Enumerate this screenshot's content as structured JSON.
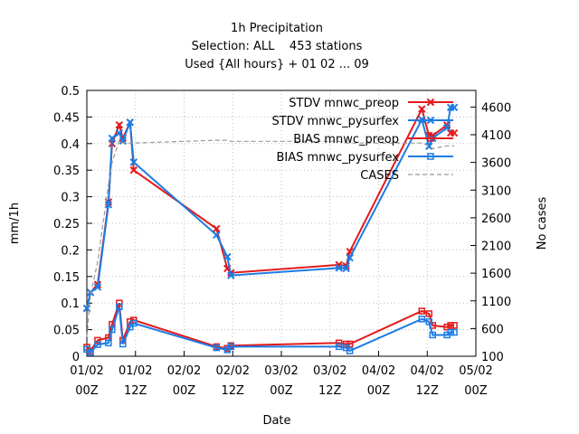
{
  "chart_data": {
    "type": "line",
    "title": [
      "1h Precipitation",
      "Selection: ALL    453 stations",
      "Used {All hours} + 01 02 ... 09"
    ],
    "xlabel": "Date",
    "ylabel": "mm/1h",
    "y2label": "No cases",
    "ylim": [
      0,
      0.5
    ],
    "y2lim": [
      100,
      4900
    ],
    "xlim": [
      0,
      108
    ],
    "x_unit": "hours since 01/02 00Z",
    "yticks": [
      "0",
      "0.05",
      "0.1",
      "0.15",
      "0.2",
      "0.25",
      "0.3",
      "0.35",
      "0.4",
      "0.45",
      "0.5"
    ],
    "y2ticks": [
      "100",
      "600",
      "1100",
      "1600",
      "2100",
      "2600",
      "3100",
      "3600",
      "4100",
      "4600"
    ],
    "xticks": [
      {
        "l1": "01/02",
        "l2": "00Z"
      },
      {
        "l1": "01/02",
        "l2": "12Z"
      },
      {
        "l1": "02/02",
        "l2": "00Z"
      },
      {
        "l1": "02/02",
        "l2": "12Z"
      },
      {
        "l1": "03/02",
        "l2": "00Z"
      },
      {
        "l1": "03/02",
        "l2": "12Z"
      },
      {
        "l1": "04/02",
        "l2": "00Z"
      },
      {
        "l1": "04/02",
        "l2": "12Z"
      },
      {
        "l1": "05/02",
        "l2": "00Z"
      }
    ],
    "grid": true,
    "legend_position": "top-right",
    "x_hours": [
      0,
      1,
      3,
      6,
      7,
      9,
      10,
      12,
      13,
      36,
      39,
      40,
      70,
      72,
      73,
      93,
      95,
      96,
      100,
      101,
      102
    ],
    "series": [
      {
        "name": "STDV mnwc_preop",
        "color": "#e41a1c",
        "marker": "x",
        "axis": "y1",
        "values": [
          0.09,
          0.12,
          0.135,
          0.29,
          0.4,
          0.435,
          0.41,
          0.44,
          0.35,
          0.24,
          0.165,
          0.157,
          0.172,
          0.17,
          0.197,
          0.465,
          0.415,
          0.415,
          0.435,
          0.42,
          0.42
        ]
      },
      {
        "name": "STDV mnwc_pysurfex",
        "color": "#1c7ce4",
        "marker": "x",
        "axis": "y1",
        "values": [
          0.09,
          0.12,
          0.13,
          0.285,
          0.41,
          0.42,
          0.405,
          0.44,
          0.365,
          0.228,
          0.187,
          0.152,
          0.166,
          0.165,
          0.185,
          0.445,
          0.395,
          0.41,
          0.43,
          0.468,
          0.468
        ]
      },
      {
        "name": "BIAS mnwc_preop",
        "color": "#e41a1c",
        "marker": "square",
        "axis": "y1",
        "values": [
          0.017,
          0.01,
          0.03,
          0.035,
          0.06,
          0.1,
          0.03,
          0.065,
          0.068,
          0.018,
          0.015,
          0.02,
          0.025,
          0.023,
          0.023,
          0.085,
          0.08,
          0.058,
          0.055,
          0.058,
          0.058
        ]
      },
      {
        "name": "BIAS mnwc_pysurfex",
        "color": "#1c7ce4",
        "marker": "square",
        "axis": "y1",
        "values": [
          0.013,
          0.007,
          0.022,
          0.025,
          0.05,
          0.093,
          0.023,
          0.055,
          0.062,
          0.016,
          0.012,
          0.018,
          0.018,
          0.016,
          0.01,
          0.07,
          0.065,
          0.04,
          0.04,
          0.045,
          0.045
        ]
      },
      {
        "name": "CASES",
        "color": "#999999",
        "marker": "none",
        "dash": true,
        "axis": "y2",
        "x_hours": [
          0,
          1,
          3,
          6,
          7,
          9,
          10,
          12,
          13,
          36,
          39,
          40,
          70,
          72,
          73,
          93,
          95,
          96,
          100,
          101,
          102
        ],
        "values": [
          450,
          1200,
          1800,
          3200,
          3600,
          4000,
          3950,
          3950,
          3950,
          4000,
          4000,
          3980,
          3980,
          3950,
          3950,
          3950,
          3900,
          3850,
          3900,
          3900,
          3900
        ]
      }
    ]
  }
}
